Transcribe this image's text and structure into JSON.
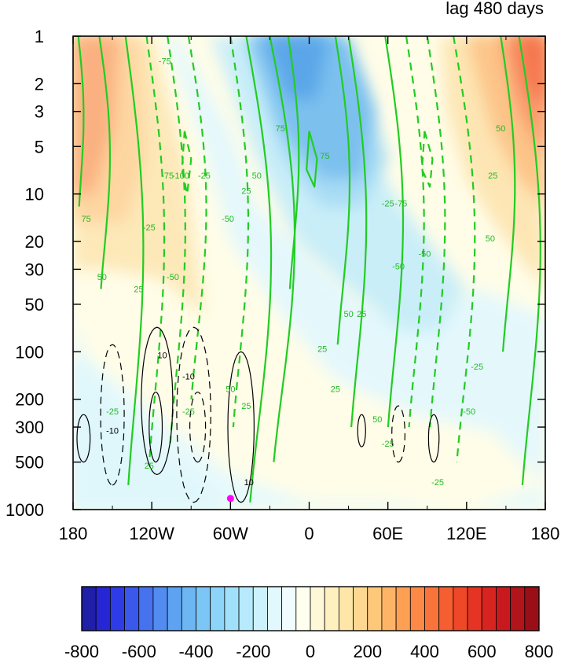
{
  "chart_data": {
    "type": "contour",
    "title": "lag 480 days",
    "xlabel": "",
    "ylabel": "",
    "x_ticks": [
      {
        "value": -180,
        "label": "180"
      },
      {
        "value": -120,
        "label": "120W"
      },
      {
        "value": -60,
        "label": "60W"
      },
      {
        "value": 0,
        "label": "0"
      },
      {
        "value": 60,
        "label": "60E"
      },
      {
        "value": 120,
        "label": "120E"
      },
      {
        "value": 180,
        "label": "180"
      }
    ],
    "xlim": [
      -180,
      180
    ],
    "y_scale": "log",
    "y_inverted": true,
    "y_ticks": [
      1,
      2,
      3,
      5,
      10,
      20,
      30,
      50,
      100,
      200,
      300,
      500,
      1000
    ],
    "ylim": [
      1000,
      1
    ],
    "colorbar": {
      "labels": [
        "-800",
        "-600",
        "-400",
        "-200",
        "0",
        "200",
        "400",
        "600",
        "800"
      ],
      "levels": [
        -800,
        -750,
        -700,
        -650,
        -600,
        -550,
        -500,
        -450,
        -400,
        -350,
        -300,
        -250,
        -200,
        -150,
        -100,
        -50,
        0,
        50,
        100,
        150,
        200,
        250,
        300,
        350,
        400,
        450,
        500,
        550,
        600,
        650,
        700,
        750,
        800
      ],
      "colors": [
        "#1f1fa8",
        "#2626d4",
        "#2e3ce8",
        "#3a58ec",
        "#4672ee",
        "#528cf0",
        "#5ea2f2",
        "#6cb6f4",
        "#7cc6f6",
        "#8cd4f8",
        "#a0e0fa",
        "#b6eafc",
        "#ccf2fe",
        "#e0f8fe",
        "#f0fcfe",
        "#fffff0",
        "#fff8d8",
        "#fff0c0",
        "#fee6a8",
        "#fed890",
        "#fec87a",
        "#feb466",
        "#fea054",
        "#fc8a46",
        "#f8743a",
        "#f45e30",
        "#ee4828",
        "#e63424",
        "#d82420",
        "#c81a1e",
        "#b2141c",
        "#9a0e18"
      ]
    },
    "shaded_field": "pressure-longitude anomaly (filled contours)",
    "green_contour_labels": [
      "75",
      "50",
      "25",
      "-25",
      "-50",
      "-75",
      "-100"
    ],
    "black_contour_labels": [
      "10",
      "-10"
    ],
    "marker": {
      "x": -60,
      "y": 850,
      "color": "#ff00ff"
    },
    "grid": false,
    "legend": "colorbar-bottom"
  }
}
